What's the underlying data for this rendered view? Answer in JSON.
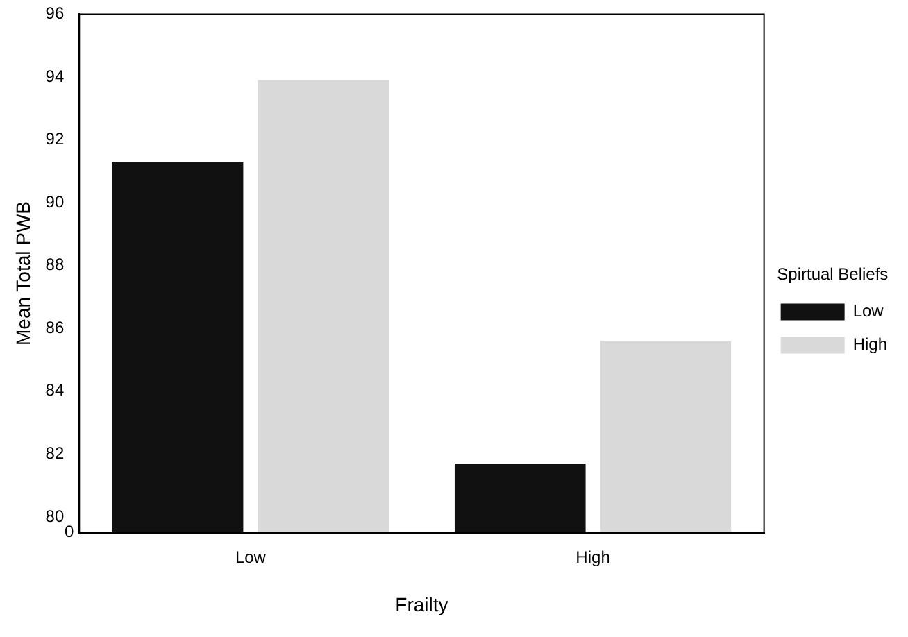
{
  "chart_data": {
    "type": "bar",
    "xlabel": "Frailty",
    "ylabel": "Mean Total PWB",
    "legend_title": "Spirtual Beliefs",
    "categories": [
      "Low",
      "High"
    ],
    "series": [
      {
        "name": "Low",
        "color": "#111111",
        "values": [
          91.3,
          81.7
        ]
      },
      {
        "name": "High",
        "color": "#d9d9d9",
        "values": [
          93.9,
          85.6
        ]
      }
    ],
    "ylim": [
      79.5,
      96
    ],
    "yticks": [
      80,
      82,
      84,
      86,
      88,
      90,
      92,
      94,
      96
    ],
    "annotations": [
      "0"
    ],
    "grid": false,
    "legend": "right"
  }
}
